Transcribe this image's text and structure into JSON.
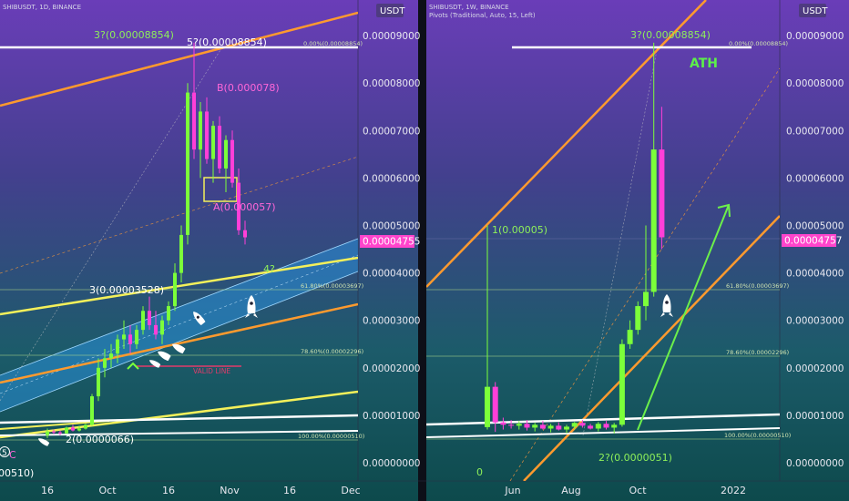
{
  "chart_data": [
    {
      "type": "candlestick",
      "header": "SHIBUSDT, 1D, BINANCE",
      "currency_label": "USDT",
      "price_axis": [
        "0.00009000",
        "0.00008000",
        "0.00007000",
        "0.00006000",
        "0.00005000",
        "0.00004000",
        "0.00003000",
        "0.00002000",
        "0.00001000",
        "0.00000000"
      ],
      "x_ticks": [
        "16",
        "Oct",
        "16",
        "Nov",
        "16",
        "Dec"
      ],
      "last_price": "0.00004755",
      "annotations": {
        "top_left": "3?(0.00008854)",
        "top_mid": "5?(0.00008854)",
        "fib_top": "0.00%(0.00008854)",
        "b_label": "B(0.000078)",
        "a_label": "A(0.000057)",
        "wave3": "3(0.00003528)",
        "wave4": "4?",
        "fib_618": "61.80%(0.00003697)",
        "fib_786": "78.60%(0.00002296)",
        "fib_100": "100.00%(0.00000510)",
        "wave2": "2(0.0000066)",
        "valid": "VALID LINE",
        "c_mark": "C",
        "five_mark": "5",
        "bottom_left": "00510)"
      },
      "ohlc": [
        [
          5.8e-06,
          7.2e-06,
          5.2e-06,
          6.6e-06
        ],
        [
          6.6e-06,
          7e-06,
          6e-06,
          6.4e-06
        ],
        [
          6.4e-06,
          6.8e-06,
          5.8e-06,
          6.2e-06
        ],
        [
          6.2e-06,
          7.6e-06,
          6.1e-06,
          7.4e-06
        ],
        [
          7.4e-06,
          8e-06,
          6.6e-06,
          6.8e-06
        ],
        [
          6.8e-06,
          7.8e-06,
          6.6e-06,
          7.2e-06
        ],
        [
          7.2e-06,
          8.2e-06,
          7e-06,
          8e-06
        ],
        [
          8e-06,
          1.45e-05,
          7.8e-06,
          1.4e-05
        ],
        [
          1.4e-05,
          2.2e-05,
          1.3e-05,
          2e-05
        ],
        [
          2e-05,
          2.4e-05,
          1.8e-05,
          2.2e-05
        ],
        [
          2.2e-05,
          2.5e-05,
          2e-05,
          2.3e-05
        ],
        [
          2.3e-05,
          2.7e-05,
          2.1e-05,
          2.6e-05
        ],
        [
          2.6e-05,
          3e-05,
          2.4e-05,
          2.7e-05
        ],
        [
          2.7e-05,
          2.9e-05,
          2.3e-05,
          2.5e-05
        ],
        [
          2.5e-05,
          2.9e-05,
          2.4e-05,
          2.8e-05
        ],
        [
          2.8e-05,
          3.3e-05,
          2.7e-05,
          3.2e-05
        ],
        [
          3.2e-05,
          3.5e-05,
          2.8e-05,
          2.9e-05
        ],
        [
          2.9e-05,
          3.2e-05,
          2.6e-05,
          2.7e-05
        ],
        [
          2.7e-05,
          3.1e-05,
          2.5e-05,
          3e-05
        ],
        [
          3e-05,
          3.4e-05,
          2.9e-05,
          3.3e-05
        ],
        [
          3.3e-05,
          4.2e-05,
          3.2e-05,
          4e-05
        ],
        [
          4e-05,
          5e-05,
          3.8e-05,
          4.8e-05
        ],
        [
          4.8e-05,
          8e-05,
          4.6e-05,
          7.8e-05
        ],
        [
          7.8e-05,
          8.85e-05,
          6.4e-05,
          6.6e-05
        ],
        [
          6.6e-05,
          7.6e-05,
          6e-05,
          7.4e-05
        ],
        [
          7.4e-05,
          7.7e-05,
          6.3e-05,
          6.4e-05
        ],
        [
          6.4e-05,
          7.2e-05,
          5.9e-05,
          7.1e-05
        ],
        [
          7.1e-05,
          7.3e-05,
          6.1e-05,
          6.2e-05
        ],
        [
          6.2e-05,
          6.9e-05,
          5.7e-05,
          6.8e-05
        ],
        [
          6.8e-05,
          7e-05,
          5.8e-05,
          5.9e-05
        ],
        [
          5.9e-05,
          6.2e-05,
          4.8e-05,
          4.9e-05
        ],
        [
          4.9e-05,
          5.1e-05,
          4.6e-05,
          4.75e-05
        ]
      ]
    },
    {
      "type": "candlestick",
      "header": "SHIBUSDT, 1W, BINANCE",
      "subheader": "Pivots (Traditional, Auto, 15, Left)",
      "currency_label": "USDT",
      "price_axis": [
        "0.00009000",
        "0.00008000",
        "0.00007000",
        "0.00006000",
        "0.00005000",
        "0.00004000",
        "0.00003000",
        "0.00002000",
        "0.00001000",
        "0.00000000"
      ],
      "x_ticks": [
        "Jun",
        "Aug",
        "Oct",
        "2022"
      ],
      "last_price": "0.00004757",
      "annotations": {
        "top": "3?(0.00008854)",
        "fib_top": "0.00%(0.00008854)",
        "ath": "ATH",
        "wave1": "1(0.00005)",
        "fib_618": "61.80%(0.00003697)",
        "fib_786": "78.60%(0.00002296)",
        "fib_100": "100.00%(0.00000510)",
        "wave2": "2?(0.0000051)",
        "zero": "0"
      },
      "ohlc": [
        [
          7.5e-06,
          5e-05,
          7e-06,
          1.6e-05
        ],
        [
          1.6e-05,
          1.7e-05,
          6.5e-06,
          8.5e-06
        ],
        [
          8.5e-06,
          9.5e-06,
          7e-06,
          8e-06
        ],
        [
          8e-06,
          9e-06,
          7.2e-06,
          7.8e-06
        ],
        [
          7.8e-06,
          8.8e-06,
          7e-06,
          8.2e-06
        ],
        [
          8.2e-06,
          9e-06,
          6.8e-06,
          7.4e-06
        ],
        [
          7.4e-06,
          8.4e-06,
          6.6e-06,
          8e-06
        ],
        [
          8e-06,
          8.8e-06,
          7e-06,
          7.2e-06
        ],
        [
          7.2e-06,
          8.2e-06,
          6.4e-06,
          7.8e-06
        ],
        [
          7.8e-06,
          8.5e-06,
          6.8e-06,
          7e-06
        ],
        [
          7e-06,
          8e-06,
          6.2e-06,
          7.6e-06
        ],
        [
          7.6e-06,
          8.6e-06,
          7e-06,
          8.4e-06
        ],
        [
          8.4e-06,
          9e-06,
          7.4e-06,
          7.8e-06
        ],
        [
          7.8e-06,
          8.2e-06,
          7e-06,
          7.2e-06
        ],
        [
          7.2e-06,
          8.6e-06,
          6.6e-06,
          8.2e-06
        ],
        [
          8.2e-06,
          8.8e-06,
          7e-06,
          7.4e-06
        ],
        [
          7.4e-06,
          8.4e-06,
          6.2e-06,
          8e-06
        ],
        [
          8e-06,
          2.6e-05,
          7.6e-06,
          2.5e-05
        ],
        [
          2.5e-05,
          3e-05,
          2.4e-05,
          2.8e-05
        ],
        [
          2.8e-05,
          3.4e-05,
          2.7e-05,
          3.3e-05
        ],
        [
          3.3e-05,
          5e-05,
          3e-05,
          3.6e-05
        ],
        [
          3.6e-05,
          8.85e-05,
          3.5e-05,
          6.6e-05
        ],
        [
          6.6e-05,
          7.5e-05,
          4.5e-05,
          4.75e-05
        ]
      ]
    }
  ]
}
